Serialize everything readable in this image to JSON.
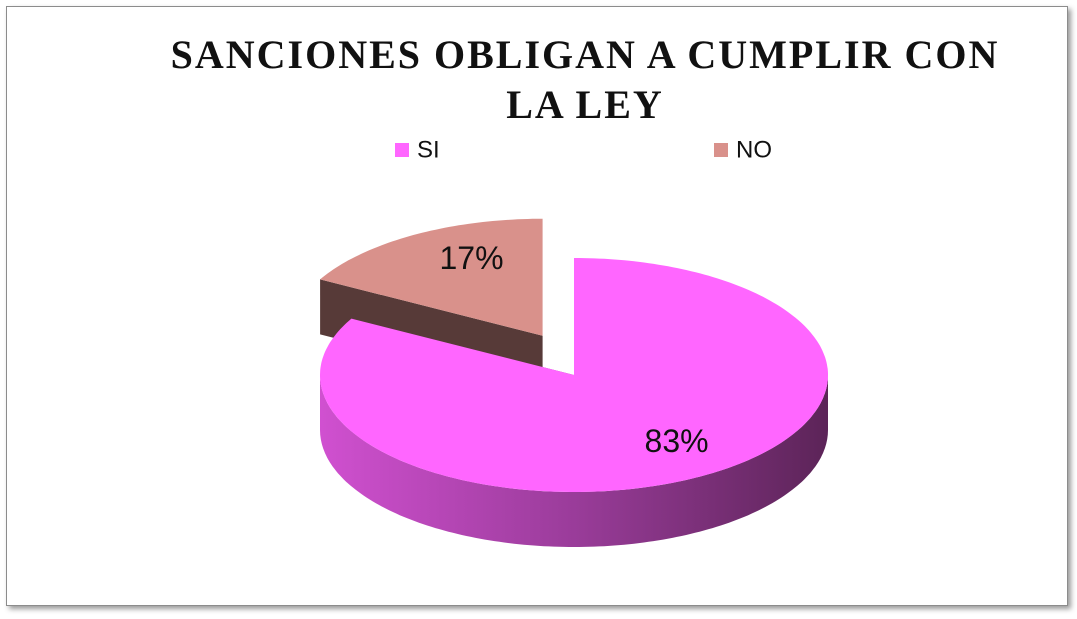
{
  "chart_data": {
    "type": "pie",
    "title": "SANCIONES OBLIGAN A CUMPLIR CON LA LEY",
    "categories": [
      "SI",
      "NO"
    ],
    "values": [
      83,
      17
    ],
    "value_labels": [
      "83%",
      "17%"
    ],
    "colors": [
      "#ff66ff",
      "#d9918b"
    ],
    "legend": "top"
  }
}
